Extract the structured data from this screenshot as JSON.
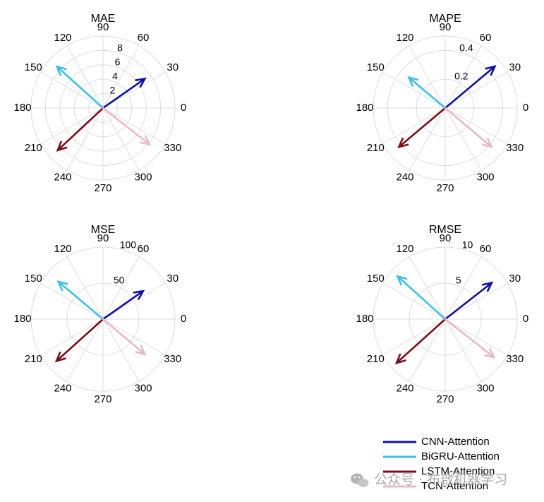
{
  "chart_data": [
    {
      "type": "compass",
      "title": "MAE",
      "rlim": [
        0,
        10
      ],
      "rticks": [
        "2",
        "4",
        "6",
        "8"
      ],
      "rtick_values": [
        2,
        4,
        6,
        8
      ],
      "series": [
        {
          "name": "CNN-Attention",
          "angle": 35,
          "magnitude": 7.1
        },
        {
          "name": "BiGRU-Attention",
          "angle": 138,
          "magnitude": 8.6
        },
        {
          "name": "LSTM-Attention",
          "angle": 223,
          "magnitude": 8.6
        },
        {
          "name": "TCN-Attention",
          "angle": 322,
          "magnitude": 8.2
        }
      ]
    },
    {
      "type": "compass",
      "title": "MAPE",
      "rlim": [
        0,
        0.5
      ],
      "rticks": [
        "0.2",
        "0.4"
      ],
      "rtick_values": [
        0.2,
        0.4
      ],
      "series": [
        {
          "name": "CNN-Attention",
          "angle": 40,
          "magnitude": 0.45
        },
        {
          "name": "BiGRU-Attention",
          "angle": 140,
          "magnitude": 0.33
        },
        {
          "name": "LSTM-Attention",
          "angle": 220,
          "magnitude": 0.42
        },
        {
          "name": "TCN-Attention",
          "angle": 320,
          "magnitude": 0.42
        }
      ]
    },
    {
      "type": "compass",
      "title": "MSE",
      "rlim": [
        0,
        100
      ],
      "rticks": [
        "50",
        "100"
      ],
      "rtick_values": [
        50,
        100
      ],
      "series": [
        {
          "name": "CNN-Attention",
          "angle": 35,
          "magnitude": 68
        },
        {
          "name": "BiGRU-Attention",
          "angle": 140,
          "magnitude": 81
        },
        {
          "name": "LSTM-Attention",
          "angle": 222,
          "magnitude": 87
        },
        {
          "name": "TCN-Attention",
          "angle": 320,
          "magnitude": 76
        }
      ]
    },
    {
      "type": "compass",
      "title": "RMSE",
      "rlim": [
        0,
        10
      ],
      "rticks": [
        "5",
        "10"
      ],
      "rtick_values": [
        5,
        10
      ],
      "series": [
        {
          "name": "CNN-Attention",
          "angle": 38,
          "magnitude": 8.2
        },
        {
          "name": "BiGRU-Attention",
          "angle": 138,
          "magnitude": 8.9
        },
        {
          "name": "LSTM-Attention",
          "angle": 222,
          "magnitude": 9.1
        },
        {
          "name": "TCN-Attention",
          "angle": 322,
          "magnitude": 8.6
        }
      ]
    }
  ],
  "angle_tick_labels": [
    "0",
    "30",
    "60",
    "90",
    "120",
    "150",
    "180",
    "210",
    "240",
    "270",
    "300",
    "330"
  ],
  "legend": {
    "position": "bottom-right",
    "items": [
      {
        "label": "CNN-Attention",
        "color": "#1010a0"
      },
      {
        "label": "BiGRU-Attention",
        "color": "#3ec0e6"
      },
      {
        "label": "LSTM-Attention",
        "color": "#7c0d1a"
      },
      {
        "label": "TCN-Attention",
        "color": "#e8b8c8"
      }
    ]
  },
  "watermark": {
    "text": "公众号 · 布啟机器学习",
    "icon": "wechat-icon"
  }
}
